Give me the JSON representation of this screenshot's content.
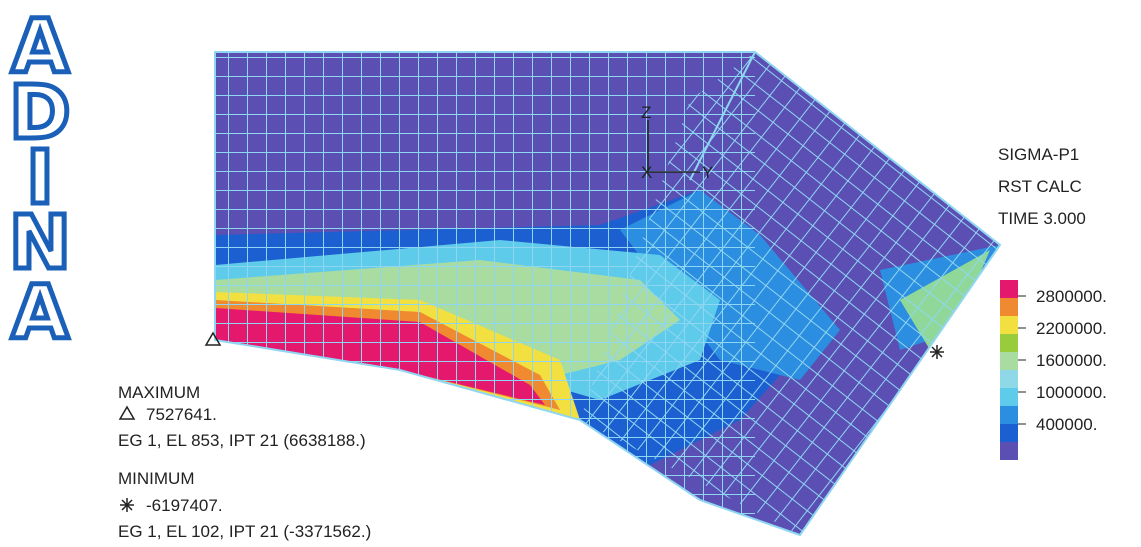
{
  "logo": [
    "A",
    "D",
    "I",
    "N",
    "A"
  ],
  "axes": {
    "z": "Z",
    "y": "Y",
    "x": "X"
  },
  "legend": {
    "title": [
      "SIGMA-P1",
      "RST CALC",
      "TIME 3.000"
    ],
    "ticks": [
      "2800000.",
      "2200000.",
      "1600000.",
      "1000000.",
      "400000."
    ]
  },
  "maximum": {
    "label": "MAXIMUM",
    "value": "7527641.",
    "detail": "EG 1, EL 853, IPT 21 (6638188.)"
  },
  "minimum": {
    "label": "MINIMUM",
    "value": "-6197407.",
    "detail": "EG 1, EL 102, IPT 21 (-3371562.)"
  }
}
